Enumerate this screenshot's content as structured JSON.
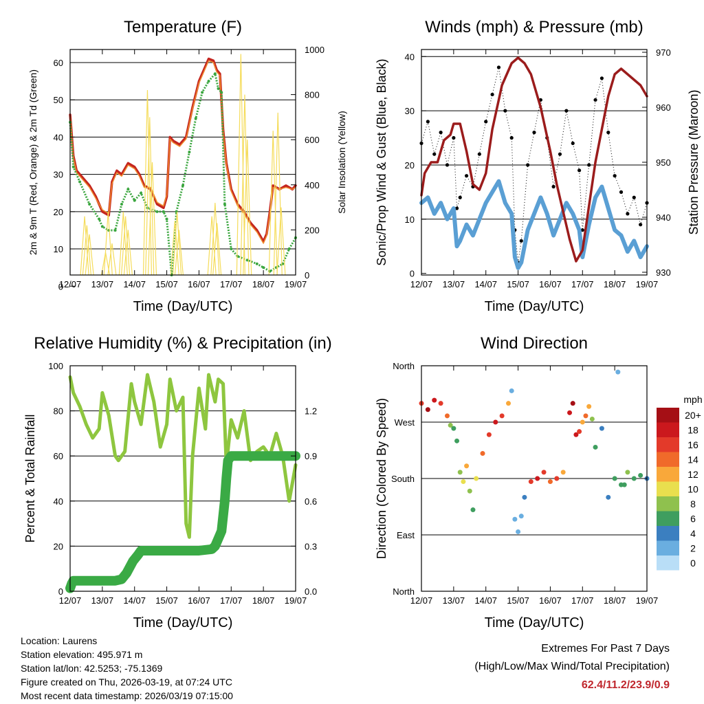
{
  "station": {
    "location": "Location: Laurens",
    "elevation": "Station elevation: 495.971 m",
    "latlon": "Station lat/lon: 42.5253; -75.1369",
    "created": "Figure created on Thu, 2026-03-19, at 07:24 UTC",
    "latest": "Most recent data timestamp: 2026/03/19 07:15:00"
  },
  "extremes": {
    "title": "Extremes For Past 7 Days",
    "subtitle": "(High/Low/Max Wind/Total Precipitation)",
    "values": "62.4/11.2/23.9/0.9"
  },
  "colors": {
    "temp2m": "#c4251f",
    "temp9m": "#f08a2c",
    "dewpoint": "#3aa63e",
    "solar": "#f5dc5a",
    "gust": "#000000",
    "wind": "#5a9fd4",
    "pressure": "#9b1c1c",
    "rh": "#8ec63f",
    "precip": "#3aaa45"
  },
  "chart_data": [
    {
      "id": "temperature",
      "type": "line",
      "title": "Temperature (F)",
      "xlabel": "Time (Day/UTC)",
      "ylabel": "2m & 9m T (Red, Orange) & 2m Td (Green)",
      "y2label": "Solar Insolation (Yellow)",
      "x_ticks": [
        "12/07",
        "13/07",
        "14/07",
        "15/07",
        "16/07",
        "17/07",
        "18/07",
        "19/07"
      ],
      "xlim": [
        0,
        7
      ],
      "ylim": [
        3,
        63.5
      ],
      "y_ticks": [
        0,
        10,
        20,
        30,
        40,
        50,
        60
      ],
      "y_tick_labels": [
        "0",
        "10",
        "20",
        "30",
        "40",
        "50",
        "60"
      ],
      "y2lim": [
        0,
        1000
      ],
      "y2_ticks": [
        0,
        200,
        400,
        600,
        800,
        1000
      ],
      "y2_tick_labels": [
        "0",
        "200",
        "400",
        "600",
        "800",
        "1000"
      ],
      "grid_y": [
        10,
        20,
        30,
        40,
        50,
        60
      ],
      "series": [
        {
          "name": "2m T",
          "axis": "y",
          "style": "line",
          "x": [
            0,
            0.1,
            0.2,
            0.4,
            0.6,
            0.8,
            1.0,
            1.2,
            1.3,
            1.45,
            1.6,
            1.8,
            2.0,
            2.15,
            2.3,
            2.5,
            2.7,
            2.9,
            3.0,
            3.1,
            3.2,
            3.4,
            3.6,
            3.8,
            4.0,
            4.2,
            4.3,
            4.45,
            4.55,
            4.65,
            4.75,
            4.85,
            5.0,
            5.2,
            5.4,
            5.6,
            5.8,
            6.0,
            6.1,
            6.2,
            6.3,
            6.5,
            6.7,
            6.9,
            7.0
          ],
          "values": [
            46,
            35,
            31,
            29,
            27,
            24,
            20,
            19,
            28,
            31,
            30,
            33,
            32,
            30,
            27,
            26,
            22,
            21,
            24,
            40,
            39,
            38,
            40,
            48,
            55,
            59,
            61,
            60.5,
            58,
            57,
            42,
            33,
            26,
            22,
            20,
            17,
            15,
            12,
            14,
            20,
            27,
            26,
            27,
            26,
            27
          ]
        },
        {
          "name": "9m T",
          "axis": "y",
          "style": "line",
          "x": [
            0,
            0.1,
            0.2,
            0.4,
            0.6,
            0.8,
            1.0,
            1.2,
            1.3,
            1.45,
            1.6,
            1.8,
            2.0,
            2.15,
            2.3,
            2.5,
            2.7,
            2.9,
            3.0,
            3.1,
            3.2,
            3.4,
            3.6,
            3.8,
            4.0,
            4.2,
            4.3,
            4.45,
            4.55,
            4.65,
            4.75,
            4.85,
            5.0,
            5.2,
            5.4,
            5.6,
            5.8,
            6.0,
            6.1,
            6.2,
            6.3,
            6.5,
            6.7,
            6.9,
            7.0
          ],
          "values": [
            45.5,
            34.5,
            30.5,
            28.5,
            26.5,
            23.5,
            20.5,
            19.5,
            27.5,
            30.5,
            29.5,
            32.5,
            31.5,
            29.5,
            26.5,
            26.5,
            22.5,
            21.5,
            24.5,
            39.5,
            38.5,
            37.5,
            39.5,
            47.5,
            54.5,
            58.5,
            60.5,
            60,
            57.5,
            56.5,
            41.5,
            32.5,
            25.5,
            21.5,
            19.5,
            16.5,
            14.5,
            11.5,
            13.5,
            19.5,
            26.5,
            26,
            26.5,
            26,
            26.5
          ]
        },
        {
          "name": "2m Td",
          "axis": "y",
          "style": "dots",
          "x": [
            0,
            0.1,
            0.3,
            0.6,
            0.9,
            1.0,
            1.2,
            1.4,
            1.6,
            1.8,
            2.0,
            2.2,
            2.4,
            2.7,
            2.9,
            3.0,
            3.15,
            3.3,
            3.5,
            3.7,
            3.9,
            4.1,
            4.3,
            4.5,
            4.6,
            4.7,
            4.8,
            5.0,
            5.2,
            5.5,
            5.8,
            6.0,
            6.2,
            6.4,
            6.6,
            6.8,
            7.0
          ],
          "values": [
            44,
            32,
            28,
            22,
            18,
            16,
            15,
            15,
            22,
            26,
            23,
            25,
            21,
            20,
            20,
            18,
            3,
            20,
            27,
            36,
            45,
            52,
            55,
            57,
            53,
            52,
            22,
            10,
            8,
            7,
            6,
            5,
            4,
            5,
            6,
            10,
            13
          ]
        },
        {
          "name": "Solar Insolation",
          "axis": "y2",
          "style": "spikes",
          "x": [
            0.45,
            0.52,
            0.6,
            1.1,
            1.18,
            1.3,
            1.65,
            1.72,
            1.8,
            2.4,
            2.47,
            2.55,
            3.25,
            3.32,
            3.38,
            4.4,
            4.5,
            4.56,
            5.3,
            5.42,
            5.5,
            6.3,
            6.45,
            6.55
          ],
          "values": [
            260,
            220,
            180,
            100,
            280,
            140,
            280,
            260,
            200,
            820,
            700,
            500,
            240,
            280,
            200,
            260,
            320,
            230,
            980,
            800,
            600,
            640,
            720,
            300
          ]
        }
      ]
    },
    {
      "id": "winds",
      "type": "line",
      "title": "Winds (mph) & Pressure (mb)",
      "xlabel": "Time (Day/UTC)",
      "ylabel": "Sonic/Prop Wind & Gust (Blue, Black)",
      "y2label": "Station Pressure (Maroon)",
      "x_ticks": [
        "12/07",
        "13/07",
        "14/07",
        "15/07",
        "16/07",
        "17/07",
        "18/07",
        "19/07"
      ],
      "xlim": [
        0,
        7
      ],
      "ylim": [
        -0.3,
        41.3
      ],
      "y_ticks": [
        0,
        10,
        20,
        30,
        40
      ],
      "y_tick_labels": [
        "0",
        "10",
        "20",
        "30",
        "40"
      ],
      "y2lim": [
        929.5,
        970.5
      ],
      "y2_ticks": [
        930,
        940,
        950,
        960,
        970
      ],
      "y2_tick_labels": [
        "930",
        "940",
        "950",
        "960",
        "970"
      ],
      "grid_y": [
        10,
        20,
        30,
        40
      ],
      "series": [
        {
          "name": "Gust",
          "axis": "y",
          "style": "scatter",
          "x": [
            0,
            0.2,
            0.4,
            0.6,
            0.8,
            1.0,
            1.1,
            1.2,
            1.4,
            1.6,
            1.8,
            2.0,
            2.2,
            2.4,
            2.6,
            2.8,
            2.9,
            3.0,
            3.1,
            3.3,
            3.5,
            3.7,
            3.9,
            4.1,
            4.3,
            4.5,
            4.7,
            4.9,
            5.0,
            5.2,
            5.4,
            5.6,
            5.8,
            6.0,
            6.2,
            6.4,
            6.6,
            6.8,
            7.0
          ],
          "values": [
            24,
            28,
            22,
            26,
            20,
            25,
            12,
            14,
            18,
            16,
            22,
            28,
            33,
            38,
            30,
            25,
            8,
            2,
            6,
            20,
            26,
            32,
            25,
            16,
            22,
            30,
            24,
            19,
            8,
            20,
            32,
            36,
            26,
            18,
            15,
            11,
            14,
            9,
            13
          ]
        },
        {
          "name": "Wind",
          "axis": "y",
          "style": "line",
          "x": [
            0,
            0.2,
            0.4,
            0.6,
            0.8,
            1.0,
            1.1,
            1.2,
            1.4,
            1.6,
            1.8,
            2.0,
            2.2,
            2.4,
            2.6,
            2.8,
            2.9,
            3.0,
            3.1,
            3.3,
            3.5,
            3.7,
            3.9,
            4.1,
            4.3,
            4.5,
            4.7,
            4.9,
            5.0,
            5.2,
            5.4,
            5.6,
            5.8,
            6.0,
            6.2,
            6.4,
            6.6,
            6.8,
            7.0
          ],
          "values": [
            13,
            14,
            11,
            13,
            10,
            12,
            5,
            6,
            9,
            7,
            10,
            13,
            15,
            17,
            13,
            11,
            3,
            1,
            2,
            8,
            11,
            14,
            11,
            7,
            10,
            13,
            11,
            8,
            3,
            9,
            14,
            16,
            12,
            8,
            7,
            4,
            6,
            3,
            5
          ]
        },
        {
          "name": "Pressure",
          "axis": "y2",
          "style": "line",
          "x": [
            0,
            0.1,
            0.3,
            0.5,
            0.7,
            0.9,
            1.0,
            1.2,
            1.4,
            1.6,
            1.8,
            2.0,
            2.2,
            2.5,
            2.8,
            3.0,
            3.2,
            3.4,
            3.7,
            4.0,
            4.2,
            4.4,
            4.6,
            4.8,
            5.0,
            5.2,
            5.4,
            5.6,
            5.8,
            6.0,
            6.2,
            6.4,
            6.6,
            6.8,
            7.0
          ],
          "values": [
            944,
            948,
            950,
            950,
            954,
            955,
            957,
            957,
            952,
            946,
            945,
            948,
            956,
            964,
            968,
            969,
            968,
            966,
            960,
            952,
            946,
            941,
            936,
            932,
            934,
            942,
            950,
            956,
            962,
            966,
            967,
            966,
            965,
            964,
            962
          ]
        }
      ]
    },
    {
      "id": "humidity",
      "type": "line",
      "title": "Relative Humidity (%) & Precipitation (in)",
      "xlabel": "Time (Day/UTC)",
      "ylabel": "Percent & Total Rainfall",
      "x_ticks": [
        "12/07",
        "13/07",
        "14/07",
        "15/07",
        "16/07",
        "17/07",
        "18/07",
        "19/07"
      ],
      "xlim": [
        0,
        7
      ],
      "ylim": [
        0,
        100
      ],
      "y_ticks": [
        0,
        20,
        40,
        60,
        80,
        100
      ],
      "y_tick_labels": [
        "0",
        "20",
        "40",
        "60",
        "80",
        "100"
      ],
      "y2lim": [
        0,
        1.5
      ],
      "y2_ticks": [
        0.0,
        0.3,
        0.6,
        0.9,
        1.2
      ],
      "y2_tick_labels": [
        "0.0",
        "0.3",
        "0.6",
        "0.9",
        "1.2"
      ],
      "grid_y": [
        20,
        40,
        60,
        80
      ],
      "series": [
        {
          "name": "Relative Humidity",
          "axis": "y",
          "style": "line",
          "x": [
            0,
            0.1,
            0.3,
            0.5,
            0.7,
            0.9,
            1.0,
            1.2,
            1.4,
            1.5,
            1.7,
            1.9,
            2.0,
            2.2,
            2.4,
            2.6,
            2.8,
            3.0,
            3.1,
            3.3,
            3.5,
            3.6,
            3.7,
            3.8,
            4.0,
            4.2,
            4.3,
            4.5,
            4.6,
            4.75,
            4.85,
            5.0,
            5.2,
            5.4,
            5.6,
            5.8,
            6.0,
            6.2,
            6.4,
            6.6,
            6.8,
            7.0
          ],
          "values": [
            95,
            88,
            82,
            74,
            68,
            72,
            88,
            78,
            60,
            58,
            62,
            92,
            84,
            74,
            96,
            84,
            64,
            74,
            94,
            80,
            86,
            30,
            24,
            60,
            90,
            72,
            96,
            84,
            94,
            92,
            56,
            76,
            68,
            80,
            58,
            62,
            64,
            60,
            70,
            60,
            40,
            56
          ]
        },
        {
          "name": "Total Precipitation",
          "axis": "y2",
          "style": "thick",
          "x": [
            0,
            0.05,
            0.1,
            0.5,
            1.0,
            1.4,
            1.6,
            1.75,
            1.85,
            1.95,
            2.1,
            2.2,
            2.4,
            3.0,
            3.5,
            4.0,
            4.4,
            4.5,
            4.6,
            4.7,
            4.8,
            4.85,
            4.9,
            5.0,
            5.5,
            6.0,
            6.5,
            7.0
          ],
          "values": [
            0.02,
            0.05,
            0.07,
            0.07,
            0.07,
            0.07,
            0.08,
            0.12,
            0.16,
            0.2,
            0.24,
            0.27,
            0.27,
            0.27,
            0.27,
            0.27,
            0.28,
            0.3,
            0.35,
            0.4,
            0.6,
            0.75,
            0.87,
            0.9,
            0.9,
            0.9,
            0.9,
            0.9
          ]
        }
      ]
    },
    {
      "id": "direction",
      "type": "scatter",
      "title": "Wind Direction",
      "xlabel": "Time (Day/UTC)",
      "ylabel": "Direction (Colored By Speed)",
      "x_ticks": [
        "12/07",
        "13/07",
        "14/07",
        "15/07",
        "16/07",
        "17/07",
        "18/07",
        "19/07"
      ],
      "xlim": [
        0,
        7
      ],
      "ylim": [
        0,
        360
      ],
      "y_ticks": [
        0,
        90,
        180,
        270,
        360
      ],
      "y_tick_labels": [
        "North",
        "East",
        "South",
        "West",
        "North"
      ],
      "grid_y": [
        90,
        180,
        270
      ],
      "legend_title": "mph",
      "legend_labels": [
        "20+",
        "18",
        "16",
        "14",
        "12",
        "10",
        "8",
        "6",
        "4",
        "2",
        "0"
      ],
      "legend_colors": [
        "#a50f15",
        "#cb181d",
        "#e33a2a",
        "#f06a2a",
        "#f9a83a",
        "#e9df4e",
        "#8fc14e",
        "#3f9e5f",
        "#3b7fc0",
        "#6aaee0",
        "#b9def7"
      ],
      "points": {
        "x": [
          0,
          0.2,
          0.4,
          0.6,
          0.8,
          0.9,
          1.0,
          1.1,
          1.2,
          1.3,
          1.4,
          1.5,
          1.6,
          1.7,
          1.9,
          2.1,
          2.3,
          2.5,
          2.7,
          2.8,
          2.9,
          3.0,
          3.1,
          3.2,
          3.4,
          3.6,
          3.8,
          4.0,
          4.2,
          4.4,
          4.6,
          4.7,
          4.8,
          4.9,
          5.0,
          5.1,
          5.2,
          5.3,
          5.4,
          5.6,
          5.8,
          6.0,
          6.1,
          6.2,
          6.3,
          6.4,
          6.6,
          6.8,
          7.0
        ],
        "values": [
          300,
          290,
          305,
          300,
          280,
          265,
          260,
          240,
          190,
          175,
          200,
          160,
          130,
          180,
          220,
          250,
          270,
          280,
          300,
          320,
          115,
          95,
          120,
          150,
          175,
          180,
          190,
          175,
          180,
          190,
          285,
          300,
          250,
          255,
          270,
          280,
          295,
          275,
          230,
          260,
          150,
          180,
          350,
          170,
          170,
          190,
          180,
          185,
          180
        ],
        "speeds": [
          16,
          20,
          18,
          17,
          14,
          9,
          7,
          6,
          9,
          10,
          12,
          8,
          7,
          11,
          14,
          17,
          18,
          16,
          12,
          3,
          3,
          2,
          3,
          4,
          16,
          18,
          17,
          14,
          16,
          13,
          18,
          20,
          18,
          16,
          13,
          15,
          12,
          8,
          6,
          5,
          4,
          6,
          2,
          6,
          7,
          8,
          7,
          6,
          5
        ]
      }
    }
  ]
}
